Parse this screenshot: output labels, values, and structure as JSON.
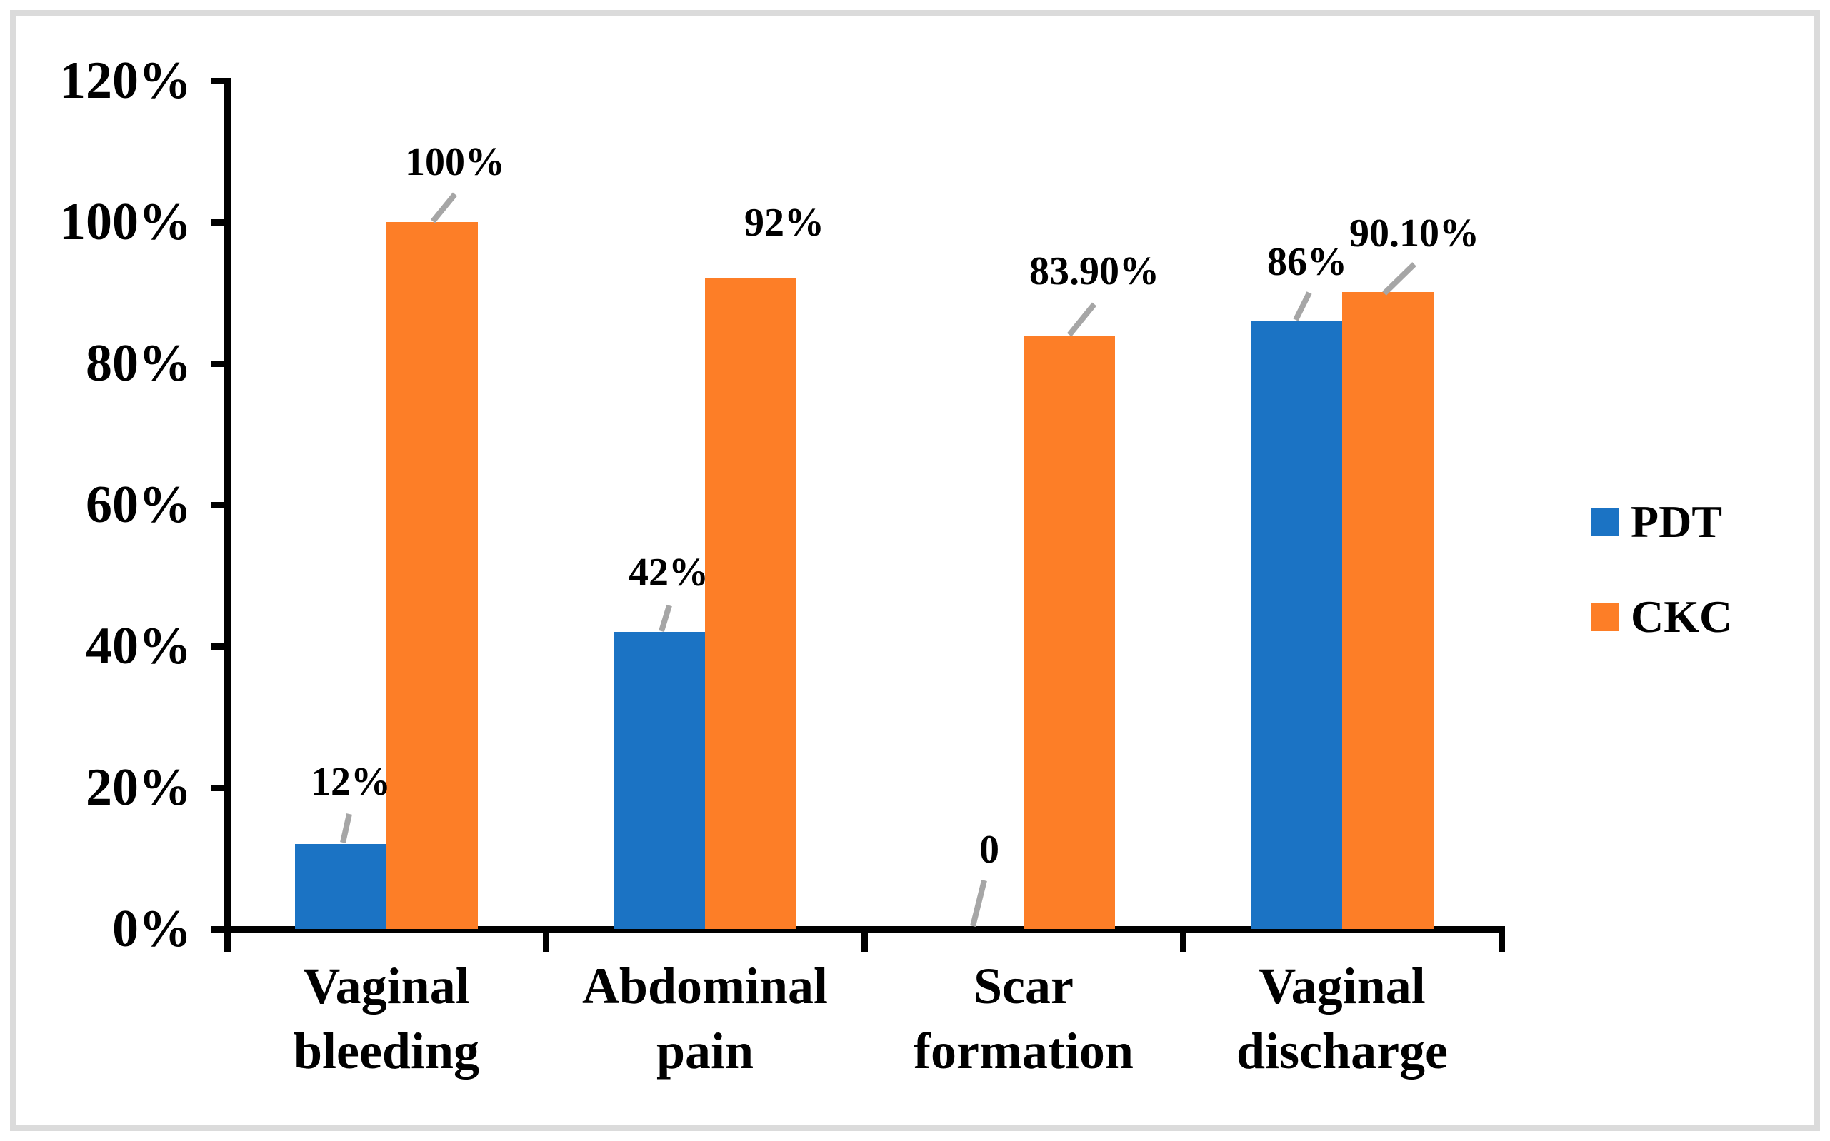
{
  "chart_data": {
    "type": "bar",
    "categories": [
      "Vaginal bleeding",
      "Abdominal pain",
      "Scar formation",
      "Vaginal discharge"
    ],
    "series": [
      {
        "name": "PDT",
        "color": "#1B73C4",
        "values": [
          12,
          42,
          0,
          86
        ],
        "data_labels": [
          "12%",
          "42%",
          "0",
          "86%"
        ],
        "leader_lines": [
          true,
          true,
          true,
          true
        ]
      },
      {
        "name": "CKC",
        "color": "#FD7E27",
        "values": [
          100,
          92,
          83.9,
          90.1
        ],
        "data_labels": [
          "100%",
          "92%",
          "83.90%",
          "90.10%"
        ],
        "leader_lines": [
          true,
          false,
          true,
          true
        ]
      }
    ],
    "title": "",
    "xlabel": "",
    "ylabel": "",
    "y_tick_labels": [
      "0%",
      "20%",
      "40%",
      "60%",
      "80%",
      "100%",
      "120%"
    ],
    "ylim": [
      0,
      120
    ],
    "grid": false,
    "legend_position": "right",
    "colors": {
      "leader_line": "#A6A6A6",
      "axis": "#000000",
      "frame_border": "#DBDBDB",
      "background": "#FFFFFF",
      "text": "#000000"
    }
  },
  "legend": {
    "items": [
      {
        "label": "PDT",
        "color": "#1B73C4"
      },
      {
        "label": "CKC",
        "color": "#FD7E27"
      }
    ]
  }
}
